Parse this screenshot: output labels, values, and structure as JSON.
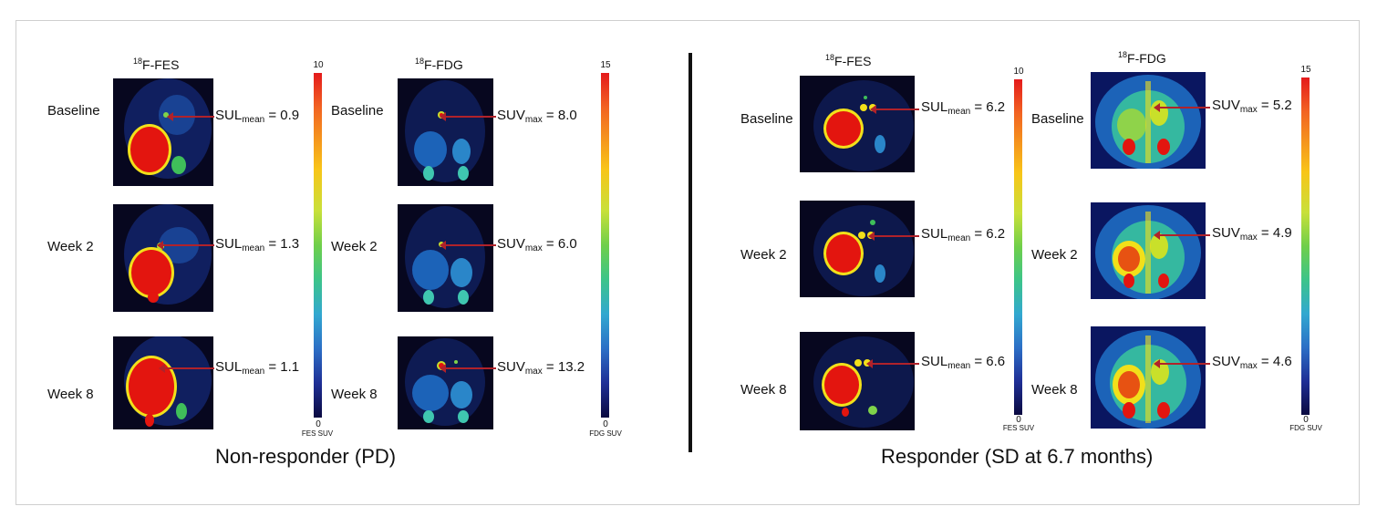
{
  "panels": {
    "left": {
      "caption": "Non-responder (PD)",
      "fes": {
        "tracer": "F-FES",
        "isotope": "18",
        "colorbar": {
          "max": "10",
          "min": "0",
          "unit": "FES SUV"
        },
        "rows": [
          {
            "label": "Baseline",
            "metric": "SUL",
            "metric_sub": "mean",
            "value": "= 0.9"
          },
          {
            "label": "Week 2",
            "metric": "SUL",
            "metric_sub": "mean",
            "value": "= 1.3"
          },
          {
            "label": "Week 8",
            "metric": "SUL",
            "metric_sub": "mean",
            "value": "= 1.1"
          }
        ]
      },
      "fdg": {
        "tracer": "F-FDG",
        "isotope": "18",
        "colorbar": {
          "max": "15",
          "min": "0",
          "unit": "FDG SUV"
        },
        "rows": [
          {
            "label": "Baseline",
            "metric": "SUV",
            "metric_sub": "max",
            "value": "= 8.0"
          },
          {
            "label": "Week 2",
            "metric": "SUV",
            "metric_sub": "max",
            "value": "= 6.0"
          },
          {
            "label": "Week 8",
            "metric": "SUV",
            "metric_sub": "max",
            "value": "= 13.2"
          }
        ]
      }
    },
    "right": {
      "caption": "Responder (SD at 6.7 months)",
      "fes": {
        "tracer": "F-FES",
        "isotope": "18",
        "colorbar": {
          "max": "10",
          "min": "0",
          "unit": "FES SUV"
        },
        "rows": [
          {
            "label": "Baseline",
            "metric": "SUL",
            "metric_sub": "mean",
            "value": "= 6.2"
          },
          {
            "label": "Week 2",
            "metric": "SUL",
            "metric_sub": "mean",
            "value": "= 6.2"
          },
          {
            "label": "Week 8",
            "metric": "SUL",
            "metric_sub": "mean",
            "value": "= 6.6"
          }
        ]
      },
      "fdg": {
        "tracer": "F-FDG",
        "isotope": "18",
        "colorbar": {
          "max": "15",
          "min": "0",
          "unit": "FDG SUV"
        },
        "rows": [
          {
            "label": "Baseline",
            "metric": "SUV",
            "metric_sub": "max",
            "value": "= 5.2"
          },
          {
            "label": "Week 2",
            "metric": "SUV",
            "metric_sub": "max",
            "value": "= 4.9"
          },
          {
            "label": "Week 8",
            "metric": "SUV",
            "metric_sub": "max",
            "value": "= 4.6"
          }
        ]
      }
    }
  }
}
